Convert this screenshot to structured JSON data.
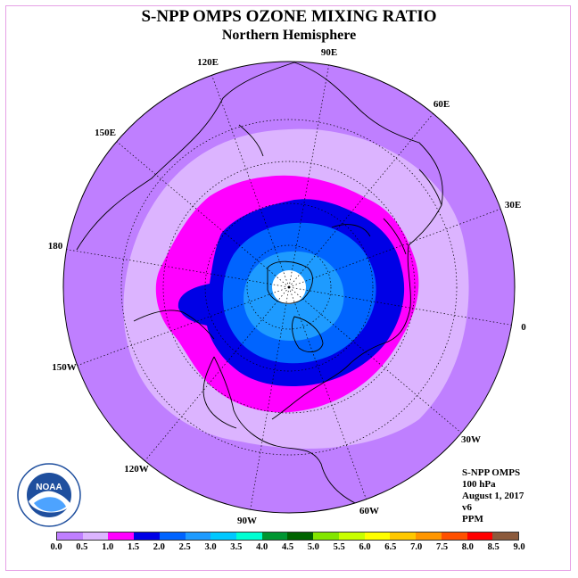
{
  "title": "S-NPP OMPS OZONE MIXING RATIO",
  "subtitle": "Northern Hemisphere",
  "longitude_labels": {
    "l90E": "90E",
    "l60E": "60E",
    "l30E": "30E",
    "l0": "0",
    "l30W": "30W",
    "l60W": "60W",
    "l90W": "90W",
    "l120W": "120W",
    "l150W": "150W",
    "l180": "180",
    "l150E": "150E",
    "l120E": "120E"
  },
  "info": {
    "instrument": "S-NPP OMPS",
    "level": "100 hPa",
    "date": "August 1, 2017",
    "version": "v6",
    "units": "PPM"
  },
  "logo": {
    "text": "NOAA",
    "ring_text": "NATIONAL OCEANIC AND ATMOSPHERIC ADMINISTRATION · U.S. DEPARTMENT OF COMMERCE"
  },
  "colorbar": {
    "colors": [
      "#bf7fff",
      "#dcb4ff",
      "#ff00ff",
      "#0000e6",
      "#0064ff",
      "#1e9bff",
      "#00c8ff",
      "#00ffd2",
      "#009632",
      "#006400",
      "#82e600",
      "#c8ff00",
      "#ffff00",
      "#ffc800",
      "#ff9600",
      "#ff5000",
      "#ff0000",
      "#8c5a3c"
    ],
    "ticks": [
      "0.0",
      "0.5",
      "1.0",
      "1.5",
      "2.0",
      "2.5",
      "3.0",
      "3.5",
      "4.0",
      "4.5",
      "5.0",
      "5.5",
      "6.0",
      "6.5",
      "7.0",
      "7.5",
      "8.0",
      "8.5",
      "9.0"
    ]
  },
  "map_colors": {
    "outer": "#bf7fff",
    "band_0_5": "#dcb4ff",
    "band_1_0": "#ff00ff",
    "band_1_5": "#0000e6",
    "band_2_0": "#0064ff",
    "band_2_5": "#1e9bff",
    "pole": "#ffffff"
  }
}
